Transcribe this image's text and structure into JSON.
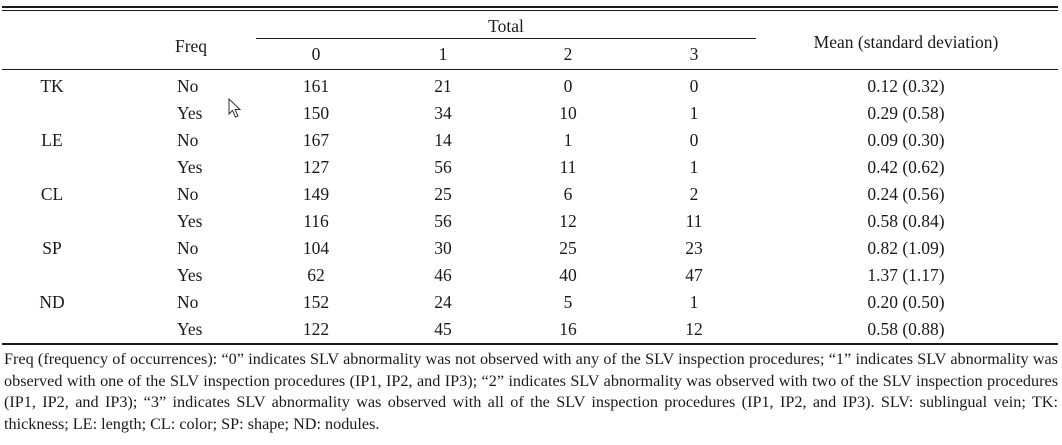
{
  "header": {
    "freq": "Freq",
    "total": "Total",
    "levels": [
      "0",
      "1",
      "2",
      "3"
    ],
    "mean": "Mean (standard deviation)"
  },
  "rows": [
    {
      "cat": "TK",
      "freq": "No",
      "v0": "161",
      "v1": "21",
      "v2": "0",
      "v3": "0",
      "mean": "0.12 (0.32)"
    },
    {
      "cat": "",
      "freq": "Yes",
      "v0": "150",
      "v1": "34",
      "v2": "10",
      "v3": "1",
      "mean": "0.29 (0.58)"
    },
    {
      "cat": "LE",
      "freq": "No",
      "v0": "167",
      "v1": "14",
      "v2": "1",
      "v3": "0",
      "mean": "0.09 (0.30)"
    },
    {
      "cat": "",
      "freq": "Yes",
      "v0": "127",
      "v1": "56",
      "v2": "11",
      "v3": "1",
      "mean": "0.42 (0.62)"
    },
    {
      "cat": "CL",
      "freq": "No",
      "v0": "149",
      "v1": "25",
      "v2": "6",
      "v3": "2",
      "mean": "0.24 (0.56)"
    },
    {
      "cat": "",
      "freq": "Yes",
      "v0": "116",
      "v1": "56",
      "v2": "12",
      "v3": "11",
      "mean": "0.58 (0.84)"
    },
    {
      "cat": "SP",
      "freq": "No",
      "v0": "104",
      "v1": "30",
      "v2": "25",
      "v3": "23",
      "mean": "0.82 (1.09)"
    },
    {
      "cat": "",
      "freq": "Yes",
      "v0": "62",
      "v1": "46",
      "v2": "40",
      "v3": "47",
      "mean": "1.37 (1.17)"
    },
    {
      "cat": "ND",
      "freq": "No",
      "v0": "152",
      "v1": "24",
      "v2": "5",
      "v3": "1",
      "mean": "0.20 (0.50)"
    },
    {
      "cat": "",
      "freq": "Yes",
      "v0": "122",
      "v1": "45",
      "v2": "16",
      "v3": "12",
      "mean": "0.58 (0.88)"
    }
  ],
  "footnote": "Freq (frequency of occurrences): “0” indicates SLV abnormality was not observed with any of the SLV inspection procedures; “1” indicates SLV abnormality was observed with one of the SLV inspection procedures (IP1, IP2, and IP3); “2” indicates SLV abnormality was observed with two of the SLV inspection procedures (IP1, IP2, and IP3); “3” indicates SLV abnormality was observed with all of the SLV inspection procedures (IP1, IP2, and IP3). SLV: sublingual vein; TK: thickness; LE: length; CL: color; SP: shape; ND: nodules."
}
